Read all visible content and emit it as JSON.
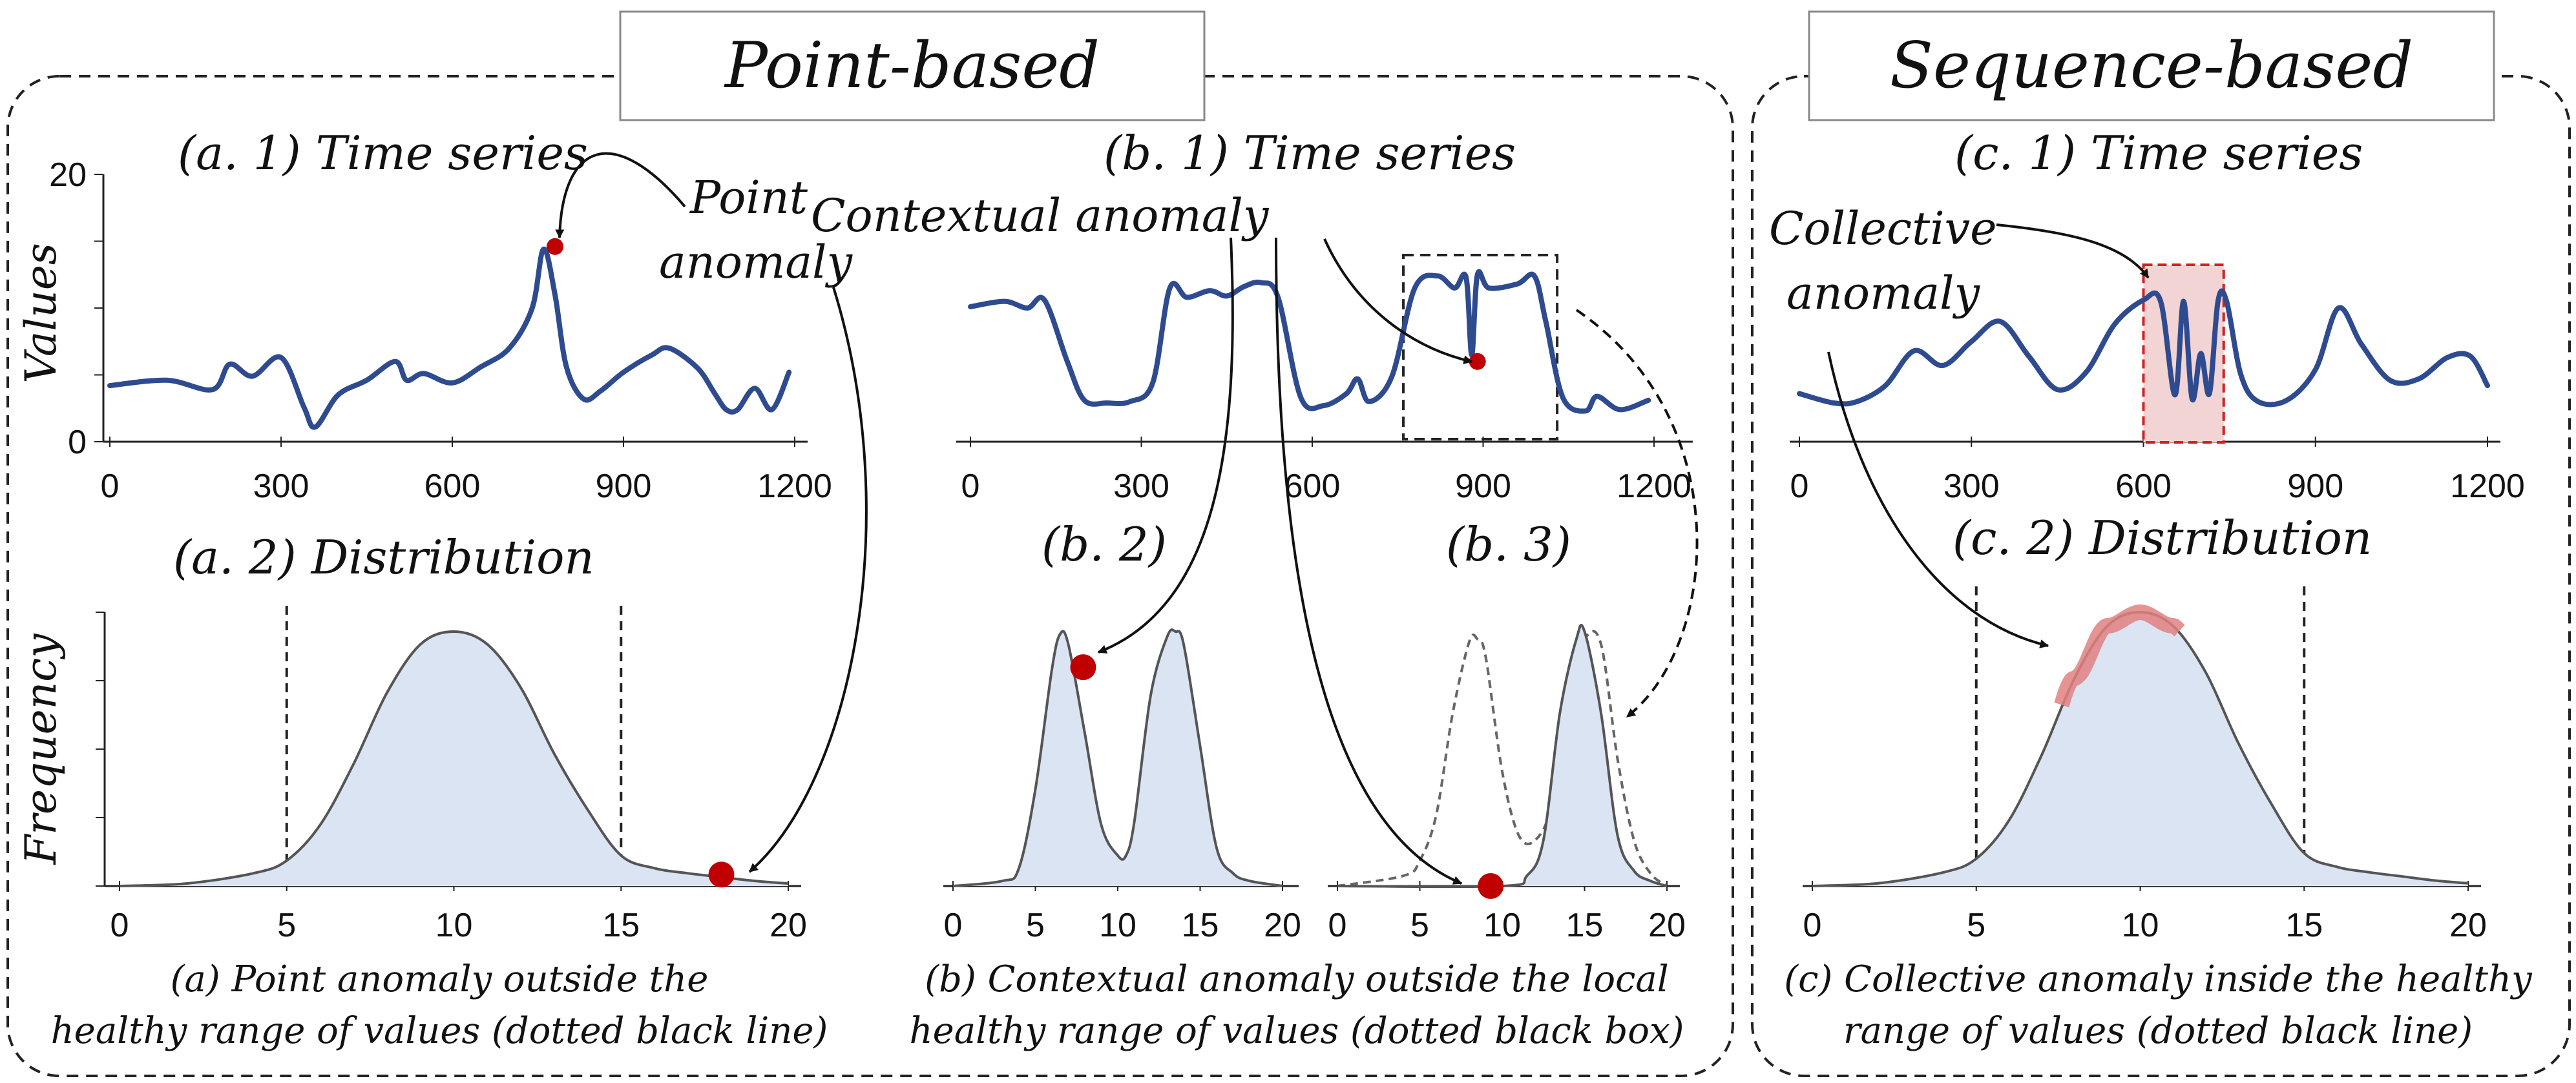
{
  "panels": {
    "point_based_title": "Point-based",
    "sequence_based_title": "Sequence-based"
  },
  "subplots": {
    "a1_title": "(a. 1) Time series",
    "a2_title": "(a. 2) Distribution",
    "b1_title": "(b. 1) Time series",
    "b2_title": "(b. 2)",
    "b3_title": "(b. 3)",
    "c1_title": "(c. 1) Time series",
    "c2_title": "(c. 2) Distribution"
  },
  "axis_labels": {
    "values": "Values",
    "frequency": "Frequency"
  },
  "annotations": {
    "point_anomaly_line1": "Point",
    "point_anomaly_line2": "anomaly",
    "contextual_anomaly": "Contextual anomaly",
    "collective_anomaly_line1": "Collective",
    "collective_anomaly_line2": "anomaly"
  },
  "captions": {
    "a_line1": "(a) Point anomaly outside  the",
    "a_line2": "healthy range of values (dotted black line)",
    "b_line1": "(b) Contextual anomaly outside  the local",
    "b_line2": "healthy range of values (dotted black box)",
    "c_line1": "(c) Collective anomaly inside the healthy",
    "c_line2": "range of values (dotted black line)"
  },
  "colors": {
    "series_line": "#2f4b8f",
    "density_fill": "#dbe4f3",
    "density_line": "#555555",
    "anomaly_point": "#c00000",
    "collective_box": "#f2d4d4",
    "collective_box_border": "#d42020",
    "collective_highlight": "#e08080"
  },
  "chart_data": [
    {
      "id": "a1",
      "type": "line",
      "title": "(a. 1) Time series",
      "xlabel": "",
      "ylabel": "Values",
      "xlim": [
        0,
        1200
      ],
      "ylim": [
        0,
        20
      ],
      "x_ticks": [
        0,
        300,
        600,
        900,
        1200
      ],
      "y_ticks": [
        0,
        20
      ],
      "x": [
        0,
        100,
        180,
        210,
        250,
        300,
        340,
        360,
        400,
        450,
        500,
        520,
        550,
        600,
        650,
        700,
        740,
        760,
        780,
        800,
        830,
        860,
        900,
        950,
        980,
        1030,
        1060,
        1080,
        1100,
        1130,
        1160,
        1190
      ],
      "y": [
        4.2,
        4.6,
        3.9,
        5.8,
        4.9,
        6.3,
        2.6,
        1.1,
        3.5,
        4.6,
        6.0,
        4.6,
        5.1,
        4.4,
        5.6,
        7.0,
        10.0,
        14.4,
        11.0,
        5.6,
        3.2,
        3.8,
        5.2,
        6.5,
        7.0,
        5.5,
        3.6,
        2.4,
        2.4,
        4.0,
        2.4,
        5.2
      ],
      "anomaly": {
        "x": 780,
        "y": 14.6,
        "label": "Point anomaly"
      }
    },
    {
      "id": "a2",
      "type": "area",
      "title": "(a. 2) Distribution",
      "xlabel": "",
      "ylabel": "Frequency",
      "xlim": [
        0,
        20
      ],
      "x_ticks": [
        0,
        5,
        10,
        15,
        20
      ],
      "healthy_range": [
        5,
        15
      ],
      "x": [
        0,
        2,
        4,
        5,
        6,
        7,
        8,
        9,
        10,
        11,
        12,
        13,
        14,
        15,
        16,
        17,
        18,
        19,
        20
      ],
      "y": [
        0.0,
        0.01,
        0.05,
        0.1,
        0.24,
        0.48,
        0.76,
        0.95,
        1.0,
        0.95,
        0.78,
        0.52,
        0.3,
        0.12,
        0.07,
        0.05,
        0.035,
        0.02,
        0.01
      ],
      "anomaly": {
        "x": 18,
        "y": 0.045
      }
    },
    {
      "id": "b1",
      "type": "line",
      "title": "(b. 1) Time series",
      "xlim": [
        0,
        1200
      ],
      "ylim": [
        0,
        20
      ],
      "x_ticks": [
        0,
        300,
        600,
        900,
        1200
      ],
      "x": [
        0,
        60,
        100,
        130,
        170,
        200,
        240,
        280,
        320,
        350,
        380,
        420,
        450,
        480,
        510,
        540,
        580,
        620,
        660,
        680,
        700,
        740,
        780,
        820,
        850,
        870,
        880,
        890,
        910,
        960,
        990,
        1010,
        1040,
        1080,
        1100,
        1140,
        1190
      ],
      "y": [
        10.1,
        10.5,
        10.0,
        10.6,
        6.0,
        3.1,
        2.9,
        3.0,
        4.4,
        11.5,
        10.8,
        11.3,
        10.9,
        11.6,
        11.9,
        10.8,
        3.3,
        2.7,
        3.6,
        4.7,
        3.0,
        4.9,
        11.5,
        12.4,
        11.5,
        12.3,
        6.5,
        12.5,
        11.5,
        11.8,
        12.4,
        9.0,
        3.3,
        2.3,
        3.4,
        2.4,
        3.1
      ],
      "anomaly": {
        "x": 890,
        "y": 6.0,
        "label": "Contextual anomaly"
      },
      "local_window": [
        760,
        1030
      ]
    },
    {
      "id": "b2",
      "type": "area",
      "title": "(b. 2)",
      "xlim": [
        0,
        20
      ],
      "x_ticks": [
        0,
        5,
        10,
        15,
        20
      ],
      "x": [
        0,
        3,
        4,
        5,
        6,
        6.5,
        7,
        8,
        9,
        10,
        10.5,
        11,
        12,
        13,
        13.5,
        14,
        15,
        16,
        17,
        18,
        20
      ],
      "y": [
        0.0,
        0.02,
        0.07,
        0.38,
        0.85,
        0.99,
        0.95,
        0.6,
        0.24,
        0.12,
        0.12,
        0.25,
        0.75,
        0.98,
        1.0,
        0.95,
        0.55,
        0.15,
        0.05,
        0.02,
        0.0
      ],
      "anomaly": {
        "x": 7.9,
        "y": 0.86
      }
    },
    {
      "id": "b3",
      "type": "area",
      "title": "(b. 3)",
      "xlim": [
        0,
        20
      ],
      "x_ticks": [
        0,
        5,
        10,
        15,
        20
      ],
      "x": [
        0,
        10,
        11.5,
        12.5,
        13.5,
        14.5,
        15,
        16,
        17,
        18,
        19,
        20
      ],
      "y": [
        0.0,
        0.0,
        0.04,
        0.18,
        0.68,
        0.97,
        1.0,
        0.68,
        0.2,
        0.06,
        0.02,
        0.0
      ],
      "global_reference": {
        "x": [
          0,
          4,
          5,
          6,
          7,
          8,
          8.5,
          9,
          10,
          11,
          12,
          13,
          14,
          15,
          16,
          17,
          18,
          19,
          20
        ],
        "y": [
          0.0,
          0.04,
          0.1,
          0.28,
          0.68,
          0.96,
          0.97,
          0.9,
          0.45,
          0.2,
          0.18,
          0.32,
          0.75,
          0.97,
          0.95,
          0.5,
          0.18,
          0.05,
          0.0
        ]
      },
      "anomaly": {
        "x": 9.3,
        "y": 0.0
      }
    },
    {
      "id": "c1",
      "type": "line",
      "title": "(c. 1) Time series",
      "xlim": [
        0,
        1200
      ],
      "ylim": [
        0,
        20
      ],
      "x_ticks": [
        0,
        300,
        600,
        900,
        1200
      ],
      "x": [
        0,
        60,
        100,
        150,
        200,
        250,
        300,
        350,
        400,
        450,
        500,
        550,
        600,
        630,
        655,
        670,
        685,
        700,
        715,
        730,
        745,
        770,
        800,
        850,
        900,
        940,
        980,
        1030,
        1080,
        1130,
        1170,
        1200
      ],
      "y": [
        3.6,
        2.9,
        3.0,
        4.2,
        6.8,
        5.7,
        7.5,
        9.0,
        6.4,
        3.9,
        5.2,
        8.8,
        10.6,
        10.5,
        3.5,
        10.5,
        3.2,
        6.6,
        3.6,
        10.5,
        10.5,
        5.0,
        3.0,
        3.1,
        5.4,
        10.0,
        7.3,
        4.6,
        4.7,
        6.3,
        6.4,
        4.2
      ],
      "collective_window": [
        600,
        740
      ],
      "anomaly_label": "Collective anomaly"
    },
    {
      "id": "c2",
      "type": "area",
      "title": "(c. 2) Distribution",
      "xlim": [
        0,
        20
      ],
      "x_ticks": [
        0,
        5,
        10,
        15,
        20
      ],
      "healthy_range": [
        5,
        15
      ],
      "x": [
        0,
        2,
        4,
        5,
        6,
        7,
        8,
        9,
        10,
        11,
        12,
        13,
        14,
        15,
        16,
        17,
        18,
        19,
        20
      ],
      "y": [
        0.0,
        0.01,
        0.05,
        0.1,
        0.24,
        0.48,
        0.76,
        0.95,
        1.0,
        0.95,
        0.78,
        0.52,
        0.3,
        0.12,
        0.07,
        0.05,
        0.035,
        0.02,
        0.01
      ],
      "highlight_range": [
        7.6,
        11.2
      ]
    }
  ]
}
